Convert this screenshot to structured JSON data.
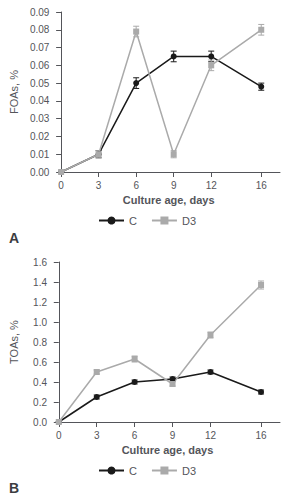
{
  "chart_data": [
    {
      "type": "line",
      "title": "A",
      "x": [
        0,
        3,
        6,
        9,
        12,
        16
      ],
      "series": [
        {
          "name": "C",
          "color": "#1a1a1a",
          "marker": "circle",
          "values": [
            0.0,
            0.01,
            0.05,
            0.065,
            0.065,
            0.048
          ],
          "errors": [
            0.0,
            0.002,
            0.003,
            0.003,
            0.003,
            0.002
          ]
        },
        {
          "name": "D3",
          "color": "#aaaaaa",
          "marker": "square",
          "values": [
            0.0,
            0.01,
            0.079,
            0.01,
            0.06,
            0.08
          ],
          "errors": [
            0.0,
            0.002,
            0.003,
            0.002,
            0.003,
            0.003
          ]
        }
      ],
      "xlabel": "Culture age, days",
      "ylabel": "FOAs, %",
      "xlim": [
        -0.3,
        17.5
      ],
      "xticks": [
        0,
        3,
        6,
        9,
        12,
        16
      ],
      "ylim": [
        0,
        0.09
      ],
      "yticks": [
        {
          "value": 0,
          "label": "0.00"
        },
        0.01,
        0.02,
        0.03,
        0.04,
        0.05,
        0.06,
        0.07,
        0.08,
        0.09
      ],
      "grid": false,
      "legend": "bottom"
    },
    {
      "type": "line",
      "title": "B",
      "x": [
        0,
        3,
        6,
        9,
        12,
        16
      ],
      "series": [
        {
          "name": "C",
          "color": "#1a1a1a",
          "marker": "circle",
          "values": [
            0.0,
            0.25,
            0.4,
            0.43,
            0.5,
            0.3
          ],
          "errors": [
            0.0,
            0.02,
            0.02,
            0.02,
            0.02,
            0.02
          ]
        },
        {
          "name": "D3",
          "color": "#aaaaaa",
          "marker": "square",
          "values": [
            0.0,
            0.5,
            0.63,
            0.38,
            0.87,
            1.37
          ],
          "errors": [
            0.0,
            0.02,
            0.03,
            0.02,
            0.03,
            0.04
          ]
        }
      ],
      "xlabel": "Culture age, days",
      "ylabel": "TOAs, %",
      "xlim": [
        -0.3,
        17.5
      ],
      "xticks": [
        0,
        3,
        6,
        9,
        12,
        16
      ],
      "ylim": [
        0,
        1.6
      ],
      "yticks": [
        {
          "value": 0,
          "label": "0.0"
        },
        0.2,
        0.4,
        0.6,
        0.8,
        {
          "value": 1.0,
          "label": "1.0"
        },
        1.2,
        1.4,
        1.6
      ],
      "grid": false,
      "legend": "bottom"
    }
  ]
}
